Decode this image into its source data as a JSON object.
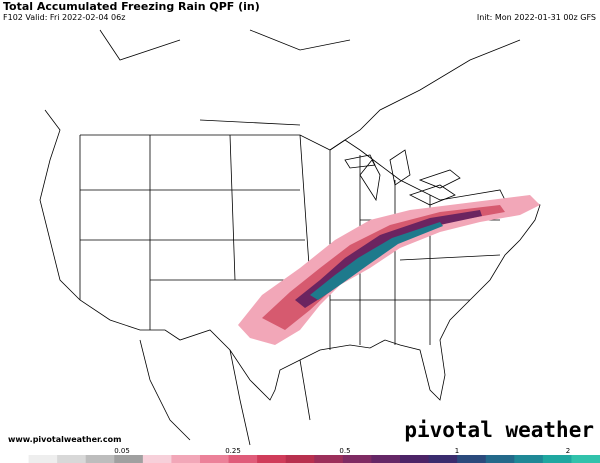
{
  "header": {
    "title": "Total Accumulated Freezing Rain QPF (in)",
    "valid": "F102 Valid: Fri 2022-02-04 06z",
    "init": "Init: Mon 2022-01-31 00z GFS"
  },
  "footer": {
    "website": "www.pivotalweather.com",
    "logo": "pivotal weather"
  },
  "colorbar": {
    "ticks": [
      0.05,
      0.25,
      0.5,
      1,
      2
    ]
  }
}
